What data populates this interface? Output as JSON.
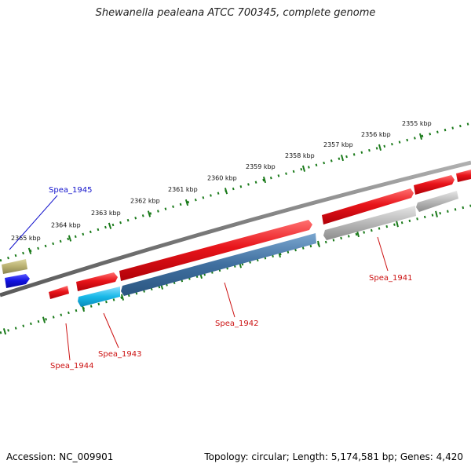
{
  "title": "Shewanella pealeana ATCC 700345, complete genome",
  "footer": {
    "accession": "Accession: NC_009901",
    "summary": "Topology: circular; Length: 5,174,581 bp; Genes: 4,420"
  },
  "colors": {
    "backbone": "#8a8a8a",
    "ruler_ticks": "#1a7a1a",
    "gene_forward": "#e8141a",
    "gene_reverse_blue": "#3f6f9f",
    "gene_reverse_cyan": "#18b8e8",
    "gene_grey": "#b8b8b8",
    "gene_olive": "#b8b070",
    "gene_navy": "#1010e0",
    "label_red": "#cc1111",
    "label_blue": "#1111cc"
  },
  "ruler": {
    "ticks": [
      {
        "label": "2355 kbp"
      },
      {
        "label": "2356 kbp"
      },
      {
        "label": "2357 kbp"
      },
      {
        "label": "2358 kbp"
      },
      {
        "label": "2359 kbp"
      },
      {
        "label": "2360 kbp"
      },
      {
        "label": "2361 kbp"
      },
      {
        "label": "2362 kbp"
      },
      {
        "label": "2363 kbp"
      },
      {
        "label": "2364 kbp"
      },
      {
        "label": "2365 kbp"
      }
    ]
  },
  "genes": [
    {
      "name": "Spea_1941",
      "color": "#cc1111"
    },
    {
      "name": "Spea_1942",
      "color": "#cc1111"
    },
    {
      "name": "Spea_1943",
      "color": "#cc1111"
    },
    {
      "name": "Spea_1944",
      "color": "#cc1111"
    },
    {
      "name": "Spea_1945",
      "color": "#1111cc"
    }
  ]
}
